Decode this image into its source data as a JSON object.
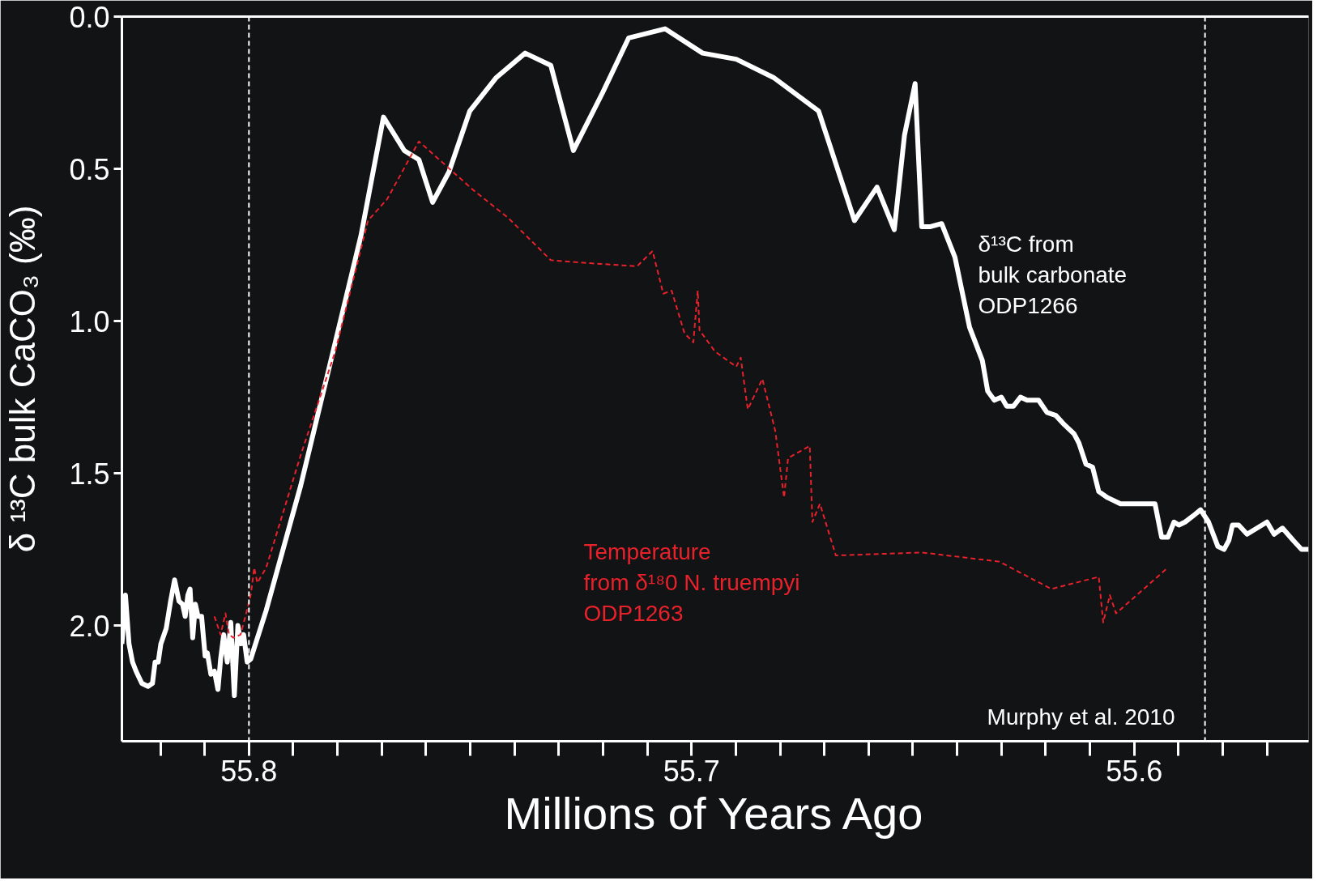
{
  "chart_data": {
    "type": "line",
    "xlabel": "Millions of Years Ago",
    "ylabel": "δ ¹³C bulk CaCO₃ (‰)",
    "xlim": [
      55.8287,
      55.5606
    ],
    "ylim": [
      2.38,
      0
    ],
    "xticks": [
      55.8,
      55.7,
      55.6
    ],
    "yticks": [
      {
        "value": 0,
        "label": "0.0"
      },
      {
        "value": 0.5,
        "label": "0.5"
      },
      {
        "value": 1.0,
        "label": "1.0"
      },
      {
        "value": 1.5,
        "label": "1.5"
      },
      {
        "value": 2.0,
        "label": "2.0"
      }
    ],
    "grid": false,
    "series": [
      {
        "name": "δ¹³C from\nbulk carbonate\nODP1266",
        "color": "#ffffff",
        "line_style": "solid",
        "x": [
          55.8287,
          55.8279,
          55.8271,
          55.8263,
          55.8255,
          55.8242,
          55.8228,
          55.8218,
          55.8212,
          55.8205,
          55.8199,
          55.8187,
          55.8177,
          55.8168,
          55.8158,
          55.815,
          55.8144,
          55.8138,
          55.8133,
          55.8127,
          55.8121,
          55.8115,
          55.8107,
          55.8099,
          55.8094,
          55.8086,
          55.8078,
          55.807,
          55.8064,
          55.8057,
          55.8049,
          55.8041,
          55.8033,
          55.8025,
          55.8018,
          55.8012,
          55.8004,
          55.7996,
          55.7961,
          55.7883,
          55.7805,
          55.7747,
          55.7696,
          55.7649,
          55.7616,
          55.7585,
          55.7548,
          55.7501,
          55.7441,
          55.7376,
          55.7318,
          55.7267,
          55.7201,
          55.7142,
          55.706,
          55.6975,
          55.6899,
          55.6815,
          55.6713,
          55.6632,
          55.6581,
          55.6542,
          55.6519,
          55.6495,
          55.648,
          55.646,
          55.6435,
          55.6405,
          55.6372,
          55.6343,
          55.6331,
          55.6316,
          55.63,
          55.6288,
          55.6273,
          55.6257,
          55.6242,
          55.6216,
          55.6197,
          55.6177,
          55.6158,
          55.6136,
          55.6125,
          55.6109,
          55.6094,
          55.608,
          55.606,
          55.6031,
          55.5953,
          55.5938,
          55.5924,
          55.591,
          55.5899,
          55.5885,
          55.5867,
          55.585,
          55.5832,
          55.5811,
          55.5797,
          55.5786,
          55.5778,
          55.5764,
          55.5745,
          55.57,
          55.5684,
          55.5665,
          55.5641,
          55.5622,
          55.5606
        ],
        "values": [
          2.06,
          1.9,
          2.06,
          2.12,
          2.15,
          2.19,
          2.2,
          2.19,
          2.12,
          2.12,
          2.06,
          2.01,
          1.92,
          1.85,
          1.92,
          1.93,
          1.97,
          1.9,
          1.88,
          2.04,
          1.93,
          1.97,
          1.97,
          2.1,
          2.09,
          2.16,
          2.15,
          2.21,
          2.11,
          2.03,
          2.12,
          1.99,
          2.23,
          2.0,
          2.06,
          2.03,
          2.12,
          2.11,
          1.95,
          1.54,
          1.07,
          0.72,
          0.33,
          0.44,
          0.47,
          0.61,
          0.51,
          0.31,
          0.2,
          0.12,
          0.16,
          0.44,
          0.25,
          0.07,
          0.04,
          0.12,
          0.14,
          0.2,
          0.31,
          0.67,
          0.56,
          0.7,
          0.39,
          0.22,
          0.69,
          0.69,
          0.68,
          0.79,
          1.02,
          1.13,
          1.23,
          1.26,
          1.25,
          1.28,
          1.28,
          1.25,
          1.26,
          1.26,
          1.3,
          1.31,
          1.34,
          1.37,
          1.4,
          1.47,
          1.48,
          1.56,
          1.58,
          1.6,
          1.6,
          1.71,
          1.71,
          1.66,
          1.67,
          1.66,
          1.64,
          1.62,
          1.66,
          1.74,
          1.75,
          1.72,
          1.67,
          1.67,
          1.7,
          1.66,
          1.7,
          1.68,
          1.72,
          1.75,
          1.75
        ]
      },
      {
        "name": "Temperature\nfrom δ¹⁸0 N. truempyi\nODP1263",
        "color": "#e8212b",
        "line_style": "dashed",
        "x": [
          55.8078,
          55.8064,
          55.8053,
          55.8045,
          55.8035,
          55.8019,
          55.8008,
          55.7996,
          55.7988,
          55.7981,
          55.7973,
          55.7961,
          55.7883,
          55.7805,
          55.7731,
          55.7688,
          55.7616,
          55.7493,
          55.7415,
          55.7318,
          55.723,
          55.7123,
          55.7088,
          55.7064,
          55.7045,
          55.7016,
          55.6996,
          55.6986,
          55.6982,
          55.6947,
          55.6899,
          55.6889,
          55.6873,
          55.684,
          55.6811,
          55.6791,
          55.6782,
          55.6733,
          55.6727,
          55.671,
          55.6674,
          55.648,
          55.6305,
          55.6187,
          55.608,
          55.607,
          55.6055,
          55.6041,
          55.5924
        ],
        "values": [
          1.97,
          2.03,
          1.96,
          2.03,
          2.04,
          2.03,
          1.97,
          1.9,
          1.81,
          1.86,
          1.84,
          1.81,
          1.44,
          1.1,
          0.67,
          0.6,
          0.41,
          0.57,
          0.66,
          0.8,
          0.81,
          0.82,
          0.77,
          0.91,
          0.9,
          1.04,
          1.07,
          0.9,
          1.03,
          1.1,
          1.15,
          1.12,
          1.29,
          1.19,
          1.36,
          1.58,
          1.45,
          1.41,
          1.66,
          1.6,
          1.77,
          1.76,
          1.79,
          1.88,
          1.84,
          1.99,
          1.9,
          1.96,
          1.81
        ]
      }
    ],
    "ref_lines": [
      {
        "axis": "x",
        "value": 55.8,
        "color": "#ffffff",
        "line_style": "dashed"
      },
      {
        "axis": "x",
        "value": 55.584,
        "color": "#ffffff",
        "line_style": "dashed"
      }
    ],
    "annotations": [
      "Murphy et al. 2010"
    ]
  }
}
